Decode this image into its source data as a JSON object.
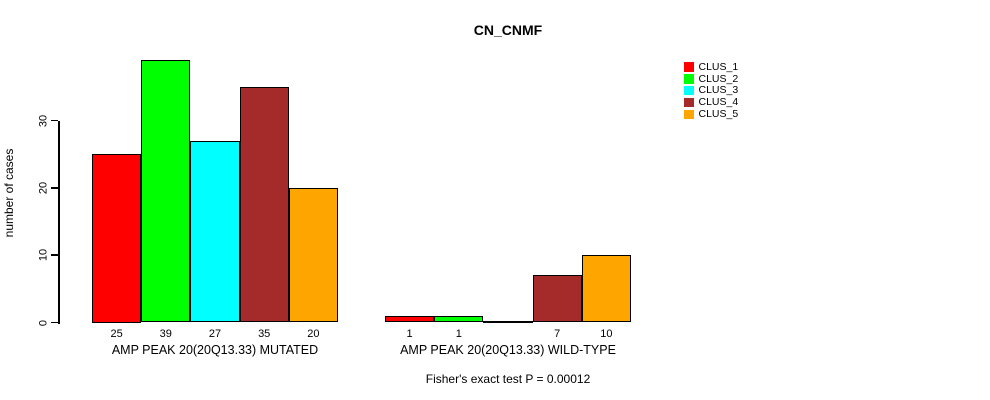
{
  "chart_data": {
    "type": "bar",
    "title": "CN_CNMF",
    "ylabel": "number of cases",
    "xlabel": "",
    "ylim": [
      0,
      39
    ],
    "yticks": [
      0,
      10,
      20,
      30
    ],
    "grid": false,
    "legend_position": "top-right",
    "categories": [
      "AMP PEAK 20(20Q13.33) MUTATED",
      "AMP PEAK 20(20Q13.33) WILD-TYPE"
    ],
    "series": [
      {
        "name": "CLUS_1",
        "color": "#FF0000",
        "values": [
          25,
          1
        ]
      },
      {
        "name": "CLUS_2",
        "color": "#00FF00",
        "values": [
          39,
          1
        ]
      },
      {
        "name": "CLUS_3",
        "color": "#00FFFF",
        "values": [
          27,
          0
        ]
      },
      {
        "name": "CLUS_4",
        "color": "#A52A2A",
        "values": [
          35,
          7
        ]
      },
      {
        "name": "CLUS_5",
        "color": "#FFA500",
        "values": [
          20,
          10
        ]
      }
    ],
    "bar_value_labels": [
      [
        "25",
        "39",
        "27",
        "35",
        "20"
      ],
      [
        "1",
        "1",
        "",
        "7",
        "10"
      ]
    ],
    "annotation": "Fisher's exact test P = 0.00012",
    "axis_color": "#000000",
    "bar_border_color": "#000000",
    "background_color": "#FFFFFF"
  }
}
